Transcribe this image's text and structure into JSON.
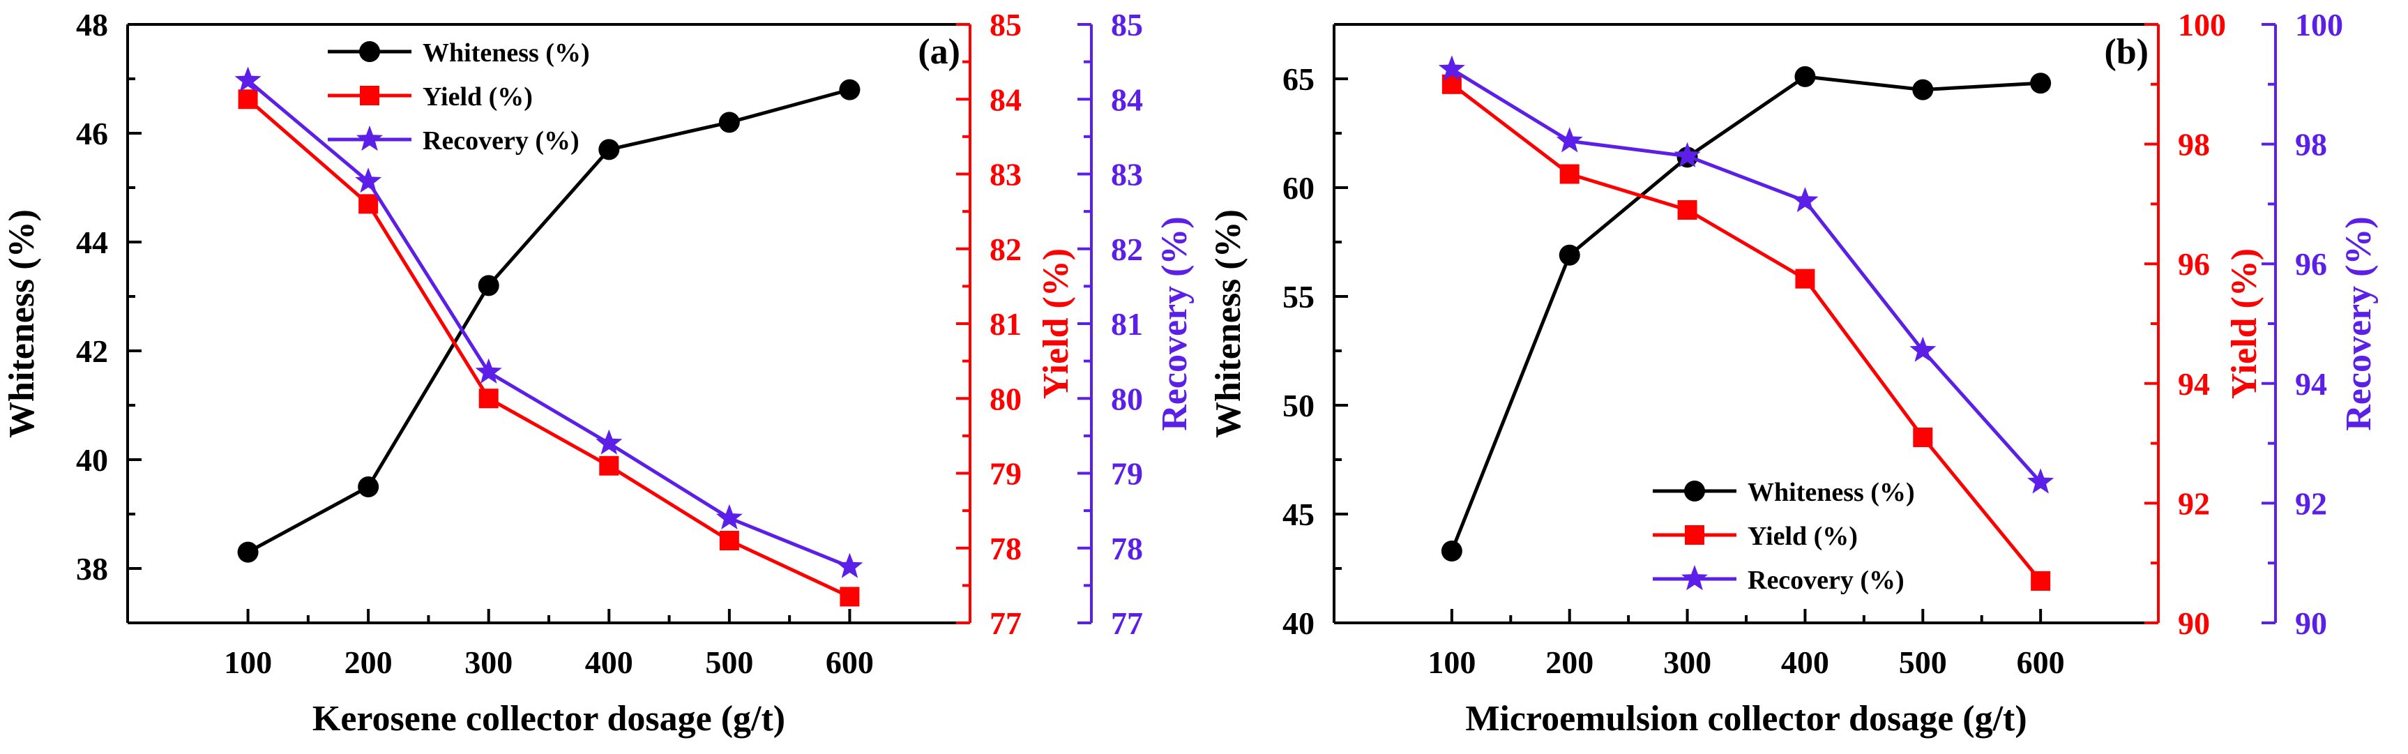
{
  "figure": {
    "colors": {
      "whiteness": "#000000",
      "yield": "#ff0000",
      "recovery": "#5b1fe8",
      "frame": "#000000"
    }
  },
  "chart_data": [
    {
      "panel": "(a)",
      "type": "line",
      "x": [
        100,
        200,
        300,
        400,
        500,
        600
      ],
      "xlabel": "Kerosene collector dosage (g/t)",
      "xticks": [
        "100",
        "200",
        "300",
        "400",
        "500",
        "600"
      ],
      "xlim": [
        0,
        700
      ],
      "axes": {
        "left": {
          "label": "Whiteness (%)",
          "lim": [
            37,
            48
          ],
          "ticks": [
            38,
            40,
            42,
            44,
            46,
            48
          ]
        },
        "right1": {
          "label": "Yield (%)",
          "lim": [
            77,
            85
          ],
          "ticks": [
            77,
            78,
            79,
            80,
            81,
            82,
            83,
            84,
            85
          ]
        },
        "right2": {
          "label": "Recovery (%)",
          "lim": [
            77,
            85
          ],
          "ticks": [
            77,
            78,
            79,
            80,
            81,
            82,
            83,
            84,
            85
          ]
        }
      },
      "series": [
        {
          "name": "Whiteness (%)",
          "axis": "left",
          "marker": "circle",
          "values": [
            38.3,
            39.5,
            43.2,
            45.7,
            46.2,
            46.8
          ]
        },
        {
          "name": "Yield (%)",
          "axis": "right1",
          "marker": "square",
          "values": [
            84.0,
            82.6,
            80.0,
            79.1,
            78.1,
            77.35
          ]
        },
        {
          "name": "Recovery (%)",
          "axis": "right2",
          "marker": "star",
          "values": [
            84.25,
            82.9,
            80.35,
            79.4,
            78.4,
            77.75
          ]
        }
      ],
      "legend": "top-center",
      "grid": false
    },
    {
      "panel": "(b)",
      "type": "line",
      "x": [
        100,
        200,
        300,
        400,
        500,
        600
      ],
      "xlabel": "Microemulsion collector dosage (g/t)",
      "xticks": [
        "100",
        "200",
        "300",
        "400",
        "500",
        "600"
      ],
      "xlim": [
        0,
        700
      ],
      "axes": {
        "left": {
          "label": "Whiteness (%)",
          "lim": [
            40,
            67.5
          ],
          "ticks": [
            40,
            45,
            50,
            55,
            60,
            65
          ]
        },
        "right1": {
          "label": "Yield (%)",
          "lim": [
            90,
            100
          ],
          "ticks": [
            90,
            92,
            94,
            96,
            98,
            100
          ]
        },
        "right2": {
          "label": "Recovery (%)",
          "lim": [
            90,
            100
          ],
          "ticks": [
            90,
            92,
            94,
            96,
            98,
            100
          ]
        }
      },
      "series": [
        {
          "name": "Whiteness (%)",
          "axis": "left",
          "marker": "circle",
          "values": [
            43.3,
            56.9,
            61.4,
            65.1,
            64.5,
            64.8
          ]
        },
        {
          "name": "Yield (%)",
          "axis": "right1",
          "marker": "square",
          "values": [
            99.0,
            97.5,
            96.9,
            95.75,
            93.1,
            90.7
          ]
        },
        {
          "name": "Recovery (%)",
          "axis": "right2",
          "marker": "star",
          "values": [
            99.25,
            98.05,
            97.8,
            97.05,
            94.55,
            92.35
          ]
        }
      ],
      "legend": "bottom-right",
      "grid": false
    }
  ]
}
